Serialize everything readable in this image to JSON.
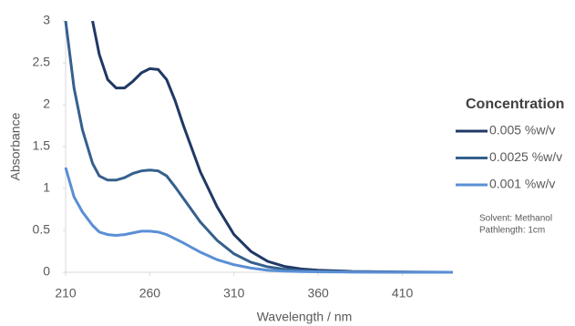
{
  "chart_data": {
    "type": "line",
    "xlabel": "Wavelength / nm",
    "ylabel": "Absorbance",
    "legend_title": "Concentration",
    "legend": "right",
    "annotations": [
      "Solvent: Methanol",
      "Pathlength: 1cm"
    ],
    "x": [
      210,
      215,
      220,
      226,
      230,
      235,
      240,
      245,
      250,
      255,
      260,
      265,
      270,
      275,
      280,
      290,
      300,
      310,
      320,
      330,
      340,
      350,
      360,
      380,
      400,
      420,
      440
    ],
    "series": [
      {
        "name": "0.005 %w/v",
        "color": "#203864",
        "values": [
          null,
          null,
          null,
          3.0,
          2.6,
          2.3,
          2.2,
          2.2,
          2.28,
          2.38,
          2.43,
          2.42,
          2.3,
          2.05,
          1.75,
          1.2,
          0.78,
          0.45,
          0.25,
          0.13,
          0.07,
          0.04,
          0.025,
          0.01,
          0.005,
          0.002,
          0
        ]
      },
      {
        "name": "0.0025 %w/v",
        "color": "#35608d",
        "values": [
          3.0,
          2.2,
          1.7,
          1.3,
          1.15,
          1.1,
          1.1,
          1.13,
          1.18,
          1.21,
          1.22,
          1.21,
          1.15,
          1.02,
          0.88,
          0.6,
          0.38,
          0.22,
          0.12,
          0.065,
          0.035,
          0.02,
          0.012,
          0.005,
          0.002,
          0.001,
          0
        ]
      },
      {
        "name": "0.001 %w/v",
        "color": "#5a8fd5",
        "values": [
          1.25,
          0.9,
          0.72,
          0.56,
          0.48,
          0.45,
          0.44,
          0.45,
          0.47,
          0.49,
          0.49,
          0.48,
          0.45,
          0.4,
          0.35,
          0.24,
          0.15,
          0.09,
          0.05,
          0.025,
          0.013,
          0.008,
          0.005,
          0.002,
          0.001,
          0,
          0
        ]
      }
    ],
    "xlim": [
      210,
      440
    ],
    "xticks": [
      210,
      260,
      310,
      360,
      410
    ],
    "ylim": [
      0,
      3
    ],
    "yticks": [
      0,
      0.5,
      1,
      1.5,
      2,
      2.5,
      3
    ],
    "grid": false
  }
}
